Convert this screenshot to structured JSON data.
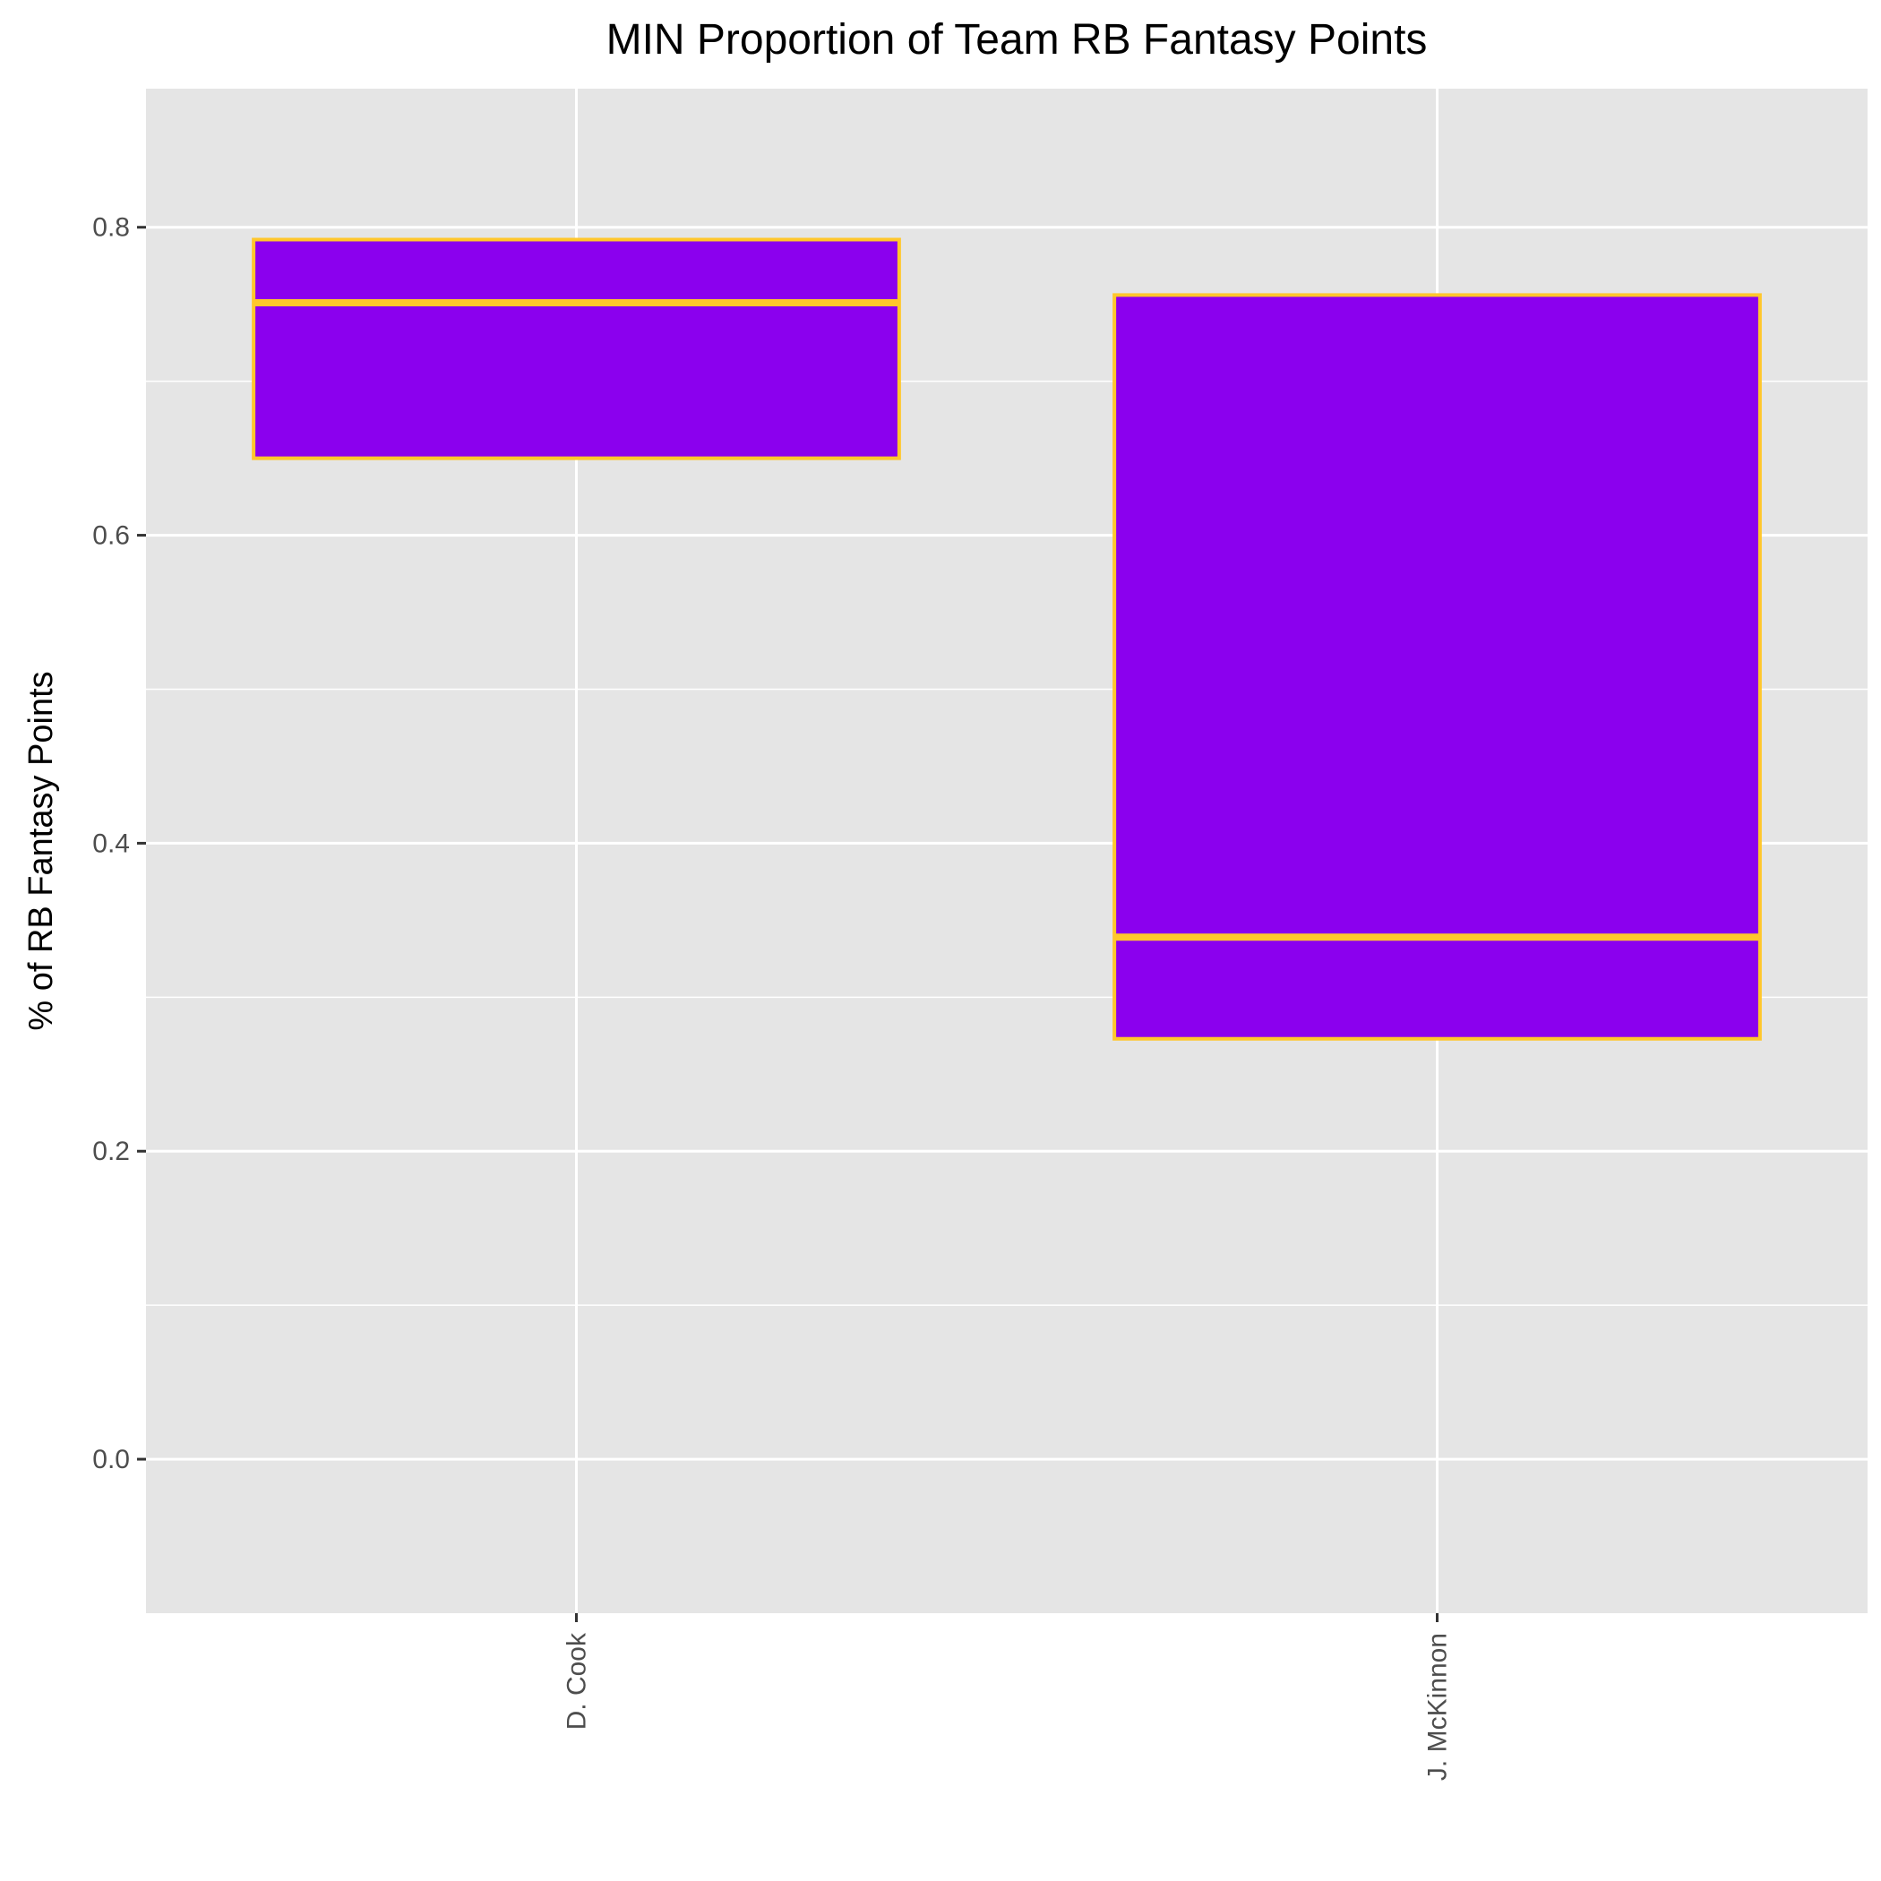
{
  "chart_data": {
    "type": "boxplot",
    "title": "MIN Proportion of Team RB Fantasy Points",
    "xlabel": "",
    "ylabel": "% of RB Fantasy Points",
    "ylim": [
      -0.1,
      0.89
    ],
    "yticks": [
      "0.0",
      "0.2",
      "0.4",
      "0.6",
      "0.8"
    ],
    "ytick_values": [
      0.0,
      0.2,
      0.4,
      0.6,
      0.8
    ],
    "categories": [
      "D. Cook",
      "J. McKinnon"
    ],
    "boxes": [
      {
        "category": "D. Cook",
        "q1": 0.65,
        "median": 0.751,
        "q3": 0.792
      },
      {
        "category": "J. McKinnon",
        "q1": 0.273,
        "median": 0.339,
        "q3": 0.756
      }
    ],
    "grid": true,
    "colors": {
      "box_fill": "#8b00ee",
      "box_outline": "#ffc72c",
      "panel_background": "#e5e5e5",
      "grid": "#ffffff"
    }
  }
}
